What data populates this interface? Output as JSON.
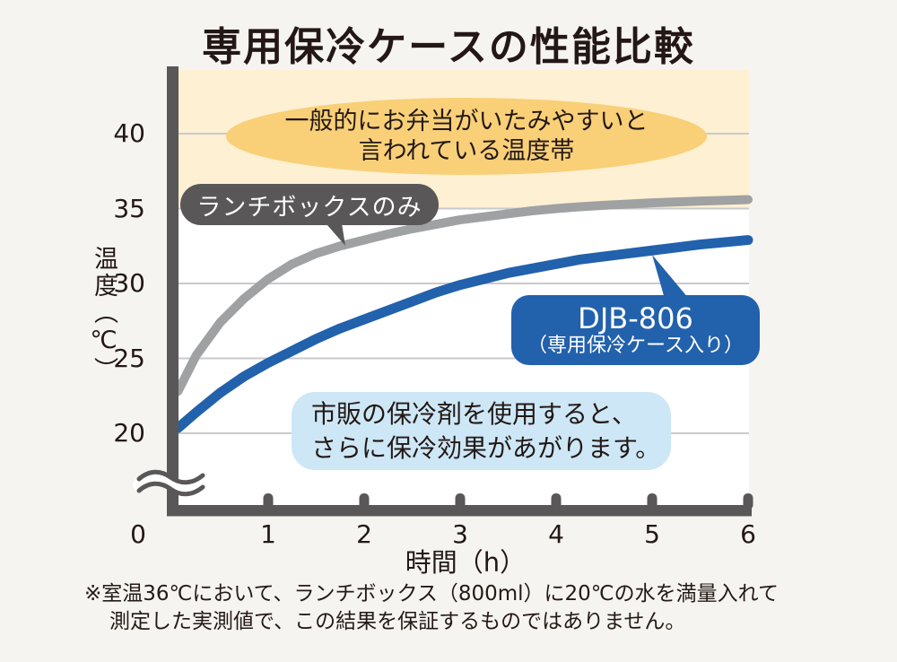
{
  "title": "専用保冷ケースの性能比較",
  "annotations": {
    "danger_zone": {
      "line1": "一般的にお弁当がいたみやすいと",
      "line2": "言われている温度帯"
    },
    "lunchbox_label": "ランチボックスのみ",
    "djb_label": {
      "line1": "DJB-806",
      "line2": "（専用保冷ケース入り）"
    },
    "tip": {
      "line1": "市販の保冷剤を使用すると、",
      "line2": "さらに保冷効果があがります。"
    }
  },
  "footnote": {
    "line1": "※室温36℃において、ランチボックス（800ml）に20℃の水を満量入れて",
    "line2": "測定した実測値で、この結果を保証するものではありません。"
  },
  "colors": {
    "background": "#f6f4f1",
    "plot_background": "#ffffff",
    "danger_band": "#fdf0d3",
    "danger_ellipse": "#f9d078",
    "gridline": "#c9cacd",
    "axis": "#595757",
    "gray_series": "#9fa1a2",
    "blue_series": "#2261ac",
    "tip_box": "#cde7f6",
    "text": "#231815"
  },
  "chart_data": {
    "type": "line",
    "title": "専用保冷ケースの性能比較",
    "xlabel": "時間（h）",
    "ylabel": "温度（℃）",
    "x_ticks": [
      0,
      1,
      2,
      3,
      4,
      5,
      6
    ],
    "y_ticks": [
      20,
      25,
      30,
      35,
      40
    ],
    "xlim": [
      0,
      6
    ],
    "ylim_displayed": [
      20,
      44
    ],
    "axis_break_below_y": 20,
    "grid": true,
    "legend_position": "inline-callouts",
    "danger_band": {
      "above_temp_c": 35,
      "label": "一般的にお弁当がいたみやすいと言われている温度帯"
    },
    "series": [
      {
        "name": "ランチボックスのみ",
        "color": "#9fa1a2",
        "stroke_width": 10,
        "hourly_values_c": [
          22.8,
          30.3,
          32.9,
          34.25,
          35.0,
          35.38,
          35.6
        ],
        "points": [
          [
            0.06,
            22.8
          ],
          [
            0.25,
            25.2
          ],
          [
            0.5,
            27.4
          ],
          [
            0.75,
            29.0
          ],
          [
            1,
            30.3
          ],
          [
            1.25,
            31.3
          ],
          [
            1.5,
            32.0
          ],
          [
            1.75,
            32.5
          ],
          [
            2,
            32.9
          ],
          [
            2.25,
            33.3
          ],
          [
            2.5,
            33.65
          ],
          [
            2.75,
            33.95
          ],
          [
            3,
            34.25
          ],
          [
            3.25,
            34.45
          ],
          [
            3.5,
            34.65
          ],
          [
            3.75,
            34.85
          ],
          [
            4,
            35.0
          ],
          [
            4.25,
            35.12
          ],
          [
            4.5,
            35.22
          ],
          [
            4.75,
            35.3
          ],
          [
            5,
            35.38
          ],
          [
            5.25,
            35.44
          ],
          [
            5.5,
            35.5
          ],
          [
            5.75,
            35.55
          ],
          [
            6,
            35.6
          ]
        ]
      },
      {
        "name": "DJB-806（専用保冷ケース入り）",
        "color": "#2261ac",
        "stroke_width": 11,
        "hourly_values_c": [
          20.35,
          24.7,
          27.6,
          29.9,
          31.3,
          32.2,
          32.9
        ],
        "points": [
          [
            0.06,
            20.35
          ],
          [
            0.25,
            21.4
          ],
          [
            0.5,
            22.7
          ],
          [
            0.75,
            23.8
          ],
          [
            1,
            24.7
          ],
          [
            1.25,
            25.5
          ],
          [
            1.5,
            26.3
          ],
          [
            1.75,
            27.0
          ],
          [
            2,
            27.6
          ],
          [
            2.25,
            28.2
          ],
          [
            2.5,
            28.8
          ],
          [
            2.75,
            29.4
          ],
          [
            3,
            29.9
          ],
          [
            3.25,
            30.3
          ],
          [
            3.5,
            30.7
          ],
          [
            3.75,
            31.0
          ],
          [
            4,
            31.3
          ],
          [
            4.25,
            31.6
          ],
          [
            4.5,
            31.8
          ],
          [
            4.75,
            32.0
          ],
          [
            5,
            32.2
          ],
          [
            5.25,
            32.4
          ],
          [
            5.5,
            32.6
          ],
          [
            5.75,
            32.75
          ],
          [
            6,
            32.9
          ]
        ]
      }
    ]
  }
}
